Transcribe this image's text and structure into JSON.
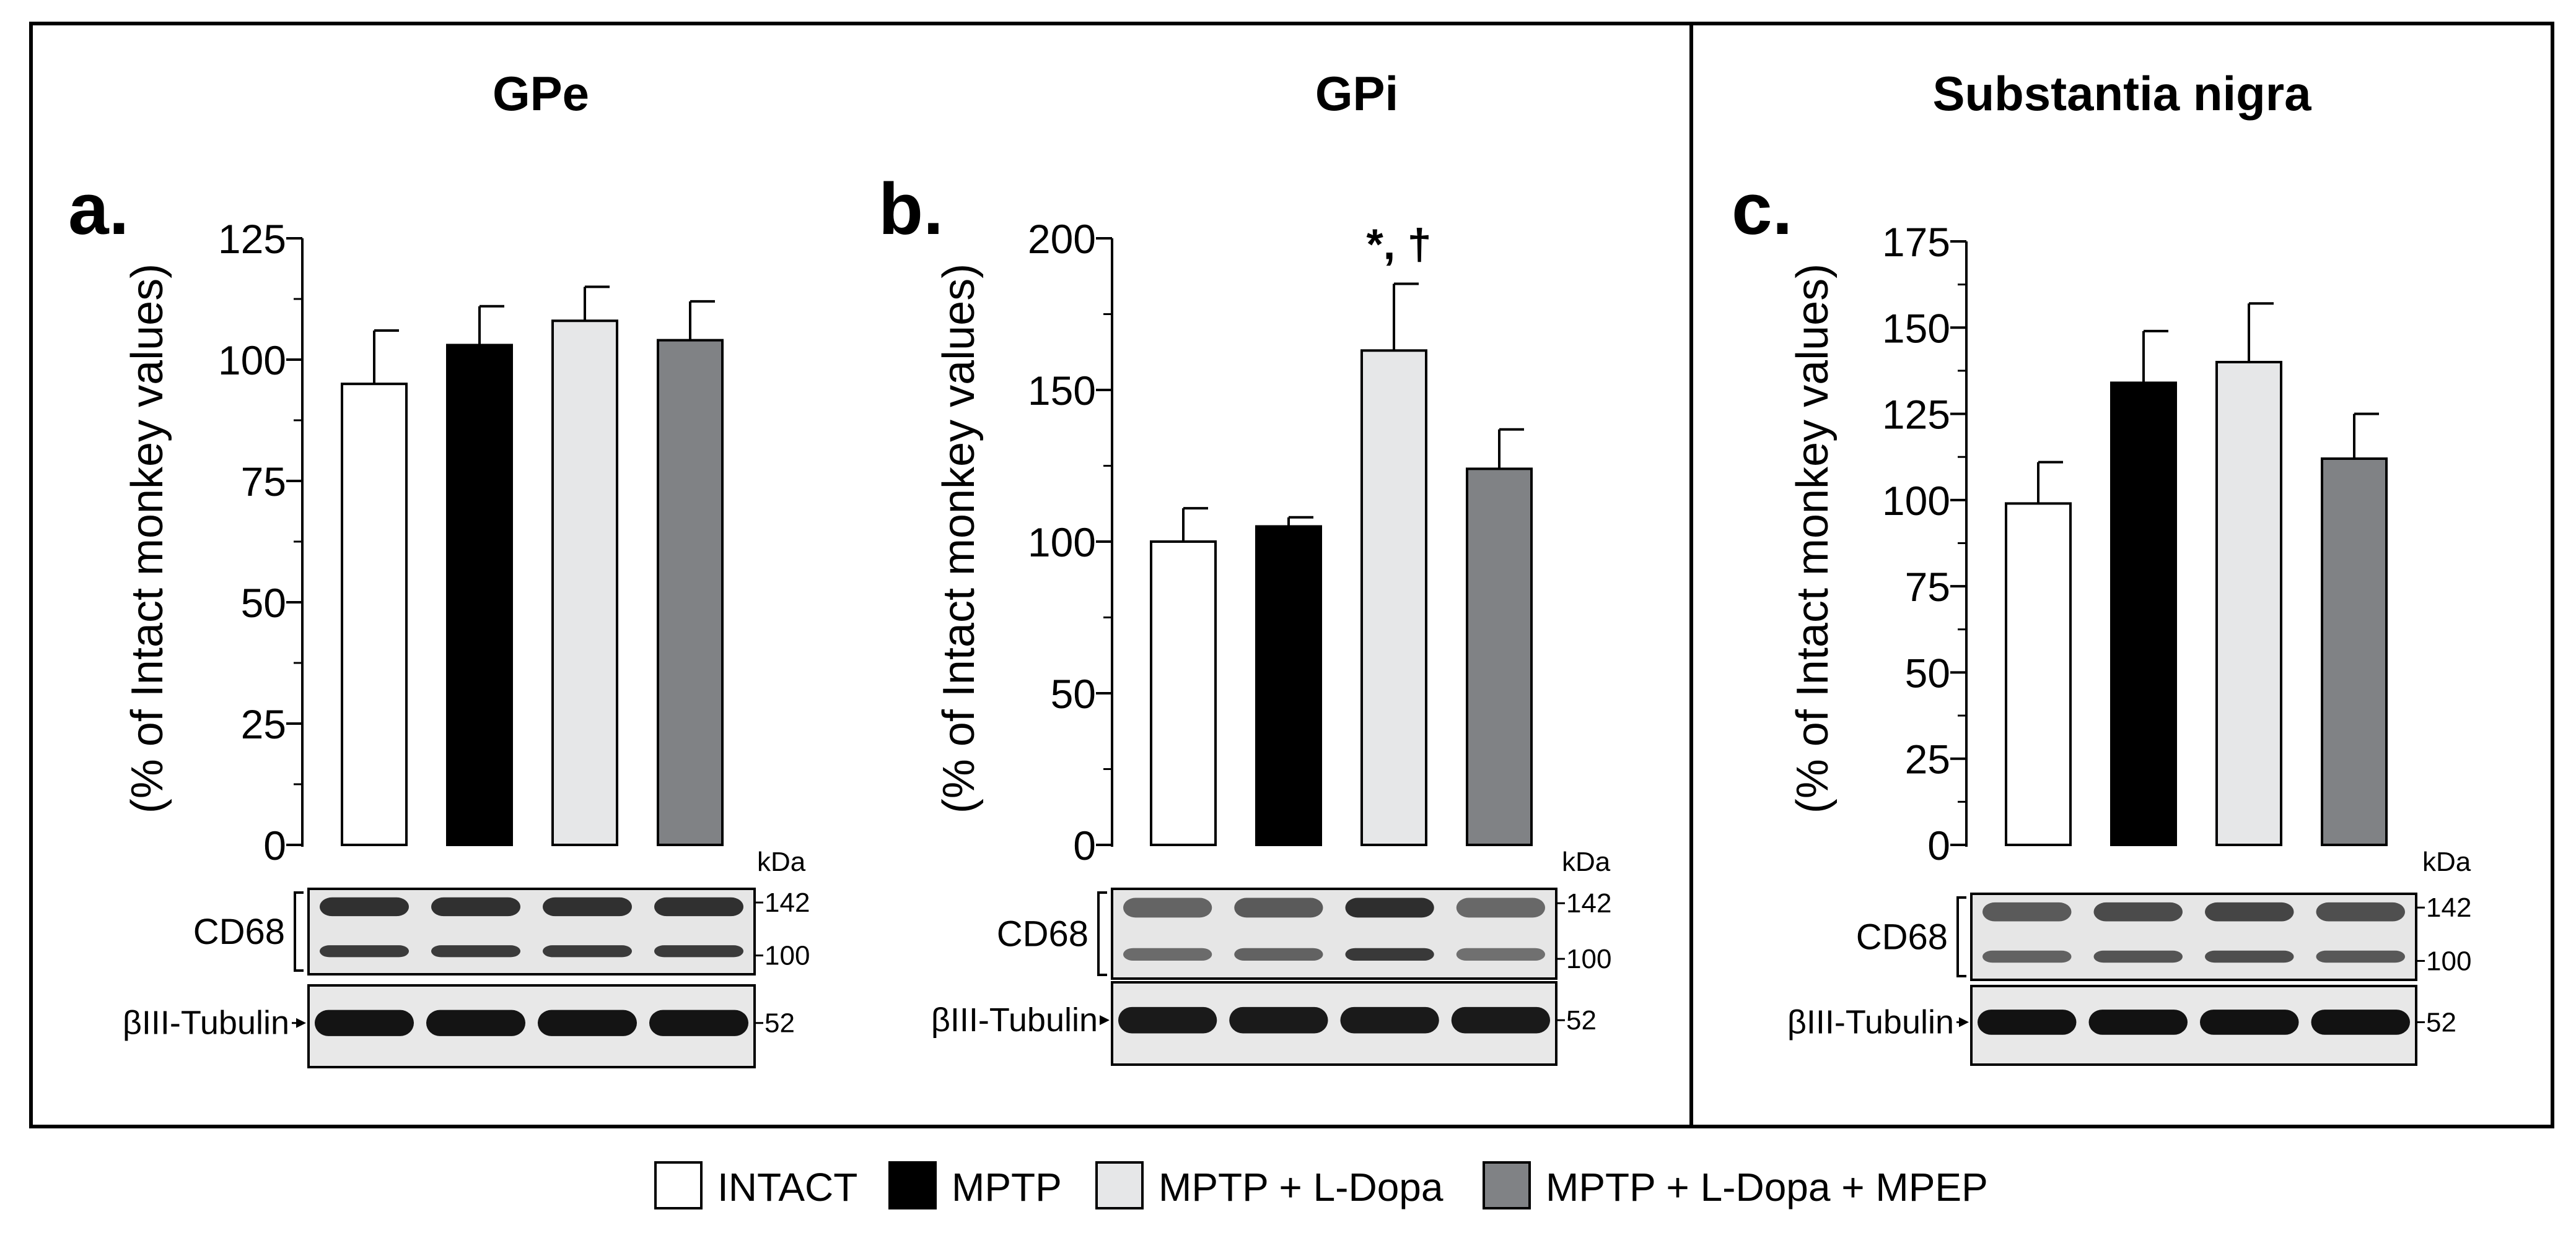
{
  "chart_data": [
    {
      "type": "bar",
      "panel_label": "a.",
      "title": "GPe",
      "ylabel": "(% of Intact monkey values)",
      "ylim": [
        0,
        125
      ],
      "major_ticks": [
        0,
        25,
        50,
        75,
        100,
        125
      ],
      "tick_labels": [
        "0",
        "25",
        "50",
        "75",
        "100",
        "125"
      ],
      "minor_step": 12.5,
      "categories": [
        "INTACT",
        "MPTP",
        "MPTP + L-Dopa",
        "MPTP + L-Dopa + MPEP"
      ],
      "values": [
        95,
        103,
        108,
        104
      ],
      "errors": [
        11,
        8,
        7,
        8
      ],
      "annotation": "",
      "blot": {
        "kda_label": "kDa",
        "protein": "CD68",
        "markers": [
          "142",
          "100"
        ],
        "control": "βIII-Tubulin",
        "control_marker": "52",
        "cd68_lane_tones": [
          "#1c1c1c",
          "#1c1c1c",
          "#1c1c1c",
          "#1c1c1c"
        ],
        "tubulin_lane_tones": [
          "#141414",
          "#141414",
          "#141414",
          "#141414"
        ]
      }
    },
    {
      "type": "bar",
      "panel_label": "b.",
      "title": "GPi",
      "ylabel": "(% of Intact monkey values)",
      "ylim": [
        0,
        200
      ],
      "major_ticks": [
        0,
        50,
        100,
        150,
        200
      ],
      "tick_labels": [
        "0",
        "50",
        "100",
        "150",
        "200"
      ],
      "minor_step": 25,
      "categories": [
        "INTACT",
        "MPTP",
        "MPTP + L-Dopa",
        "MPTP + L-Dopa + MPEP"
      ],
      "values": [
        100,
        105,
        163,
        124
      ],
      "errors": [
        11,
        3,
        22,
        13
      ],
      "annotation": "*, †",
      "blot": {
        "kda_label": "kDa",
        "protein": "CD68",
        "markers": [
          "142",
          "100"
        ],
        "control": "βIII-Tubulin",
        "control_marker": "52",
        "cd68_lane_tones": [
          "#555555",
          "#4a4a4a",
          "#1a1a1a",
          "#5a5a5a"
        ],
        "tubulin_lane_tones": [
          "#1a1a1a",
          "#1a1a1a",
          "#1a1a1a",
          "#1a1a1a"
        ]
      }
    },
    {
      "type": "bar",
      "panel_label": "c.",
      "title": "Substantia nigra",
      "ylabel": "(% of Intact monkey values)",
      "ylim": [
        0,
        175
      ],
      "major_ticks": [
        0,
        25,
        50,
        75,
        100,
        125,
        150,
        175
      ],
      "tick_labels": [
        "0",
        "25",
        "50",
        "75",
        "100",
        "125",
        "150",
        "175"
      ],
      "minor_step": 12.5,
      "categories": [
        "INTACT",
        "MPTP",
        "MPTP + L-Dopa",
        "MPTP + L-Dopa + MPEP"
      ],
      "values": [
        99,
        134,
        140,
        112
      ],
      "errors": [
        12,
        15,
        17,
        13
      ],
      "annotation": "",
      "blot": {
        "kda_label": "kDa",
        "protein": "CD68",
        "markers": [
          "142",
          "100"
        ],
        "control": "βIII-Tubulin",
        "control_marker": "52",
        "cd68_lane_tones": [
          "#4a4a4a",
          "#3a3a3a",
          "#333333",
          "#3e3e3e"
        ],
        "tubulin_lane_tones": [
          "#121212",
          "#121212",
          "#121212",
          "#121212"
        ]
      }
    }
  ],
  "legend": {
    "items": [
      {
        "label": "INTACT",
        "color": "#ffffff"
      },
      {
        "label": "MPTP",
        "color": "#000000"
      },
      {
        "label": "MPTP + L-Dopa",
        "color": "#e6e7e8"
      },
      {
        "label": "MPTP + L-Dopa + MPEP",
        "color": "#808285"
      }
    ]
  }
}
